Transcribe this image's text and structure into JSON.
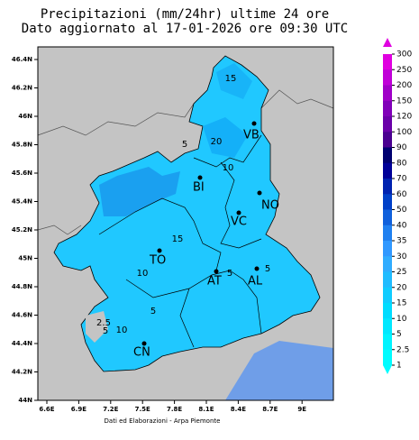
{
  "header": {
    "title": "Precipitazioni (mm/24hr) ultime 24 ore",
    "subtitle": "Dato aggiornato al 17-01-2026 ore 09:30 UTC"
  },
  "map": {
    "lon_labels": [
      "6.6E",
      "6.9E",
      "7.2E",
      "7.5E",
      "7.8E",
      "8.1E",
      "8.4E",
      "8.7E",
      "9E"
    ],
    "lat_labels": [
      "46.4N",
      "46.2N",
      "46N",
      "45.8N",
      "45.6N",
      "45.4N",
      "45.2N",
      "45N",
      "44.8N",
      "44.6N",
      "44.4N",
      "44.2N",
      "44N"
    ],
    "cities": [
      "VB",
      "BI",
      "NO",
      "VC",
      "TO",
      "AT",
      "AL",
      "CN"
    ],
    "contour_labels": [
      "15",
      "20",
      "5",
      "10",
      "15",
      "10",
      "5",
      "2.5",
      "5",
      "10",
      "5",
      "5"
    ]
  },
  "colorbar": {
    "labels": [
      "300",
      "250",
      "200",
      "150",
      "120",
      "100",
      "90",
      "80",
      "70",
      "60",
      "50",
      "40",
      "35",
      "30",
      "25",
      "20",
      "15",
      "10",
      "5",
      "2.5",
      "1"
    ],
    "colors": [
      "#e000e0",
      "#c000d8",
      "#a000c8",
      "#8000b8",
      "#6a00a8",
      "#4a0090",
      "#000070",
      "#000098",
      "#0022b0",
      "#0040c8",
      "#1060dc",
      "#2080f0",
      "#3098ff",
      "#30acff",
      "#20bcff",
      "#10ccff",
      "#00dcff",
      "#00e8ff",
      "#00f4ff",
      "#00fcff"
    ]
  },
  "footer": "Dati ed Elaborazioni - Arpa Piemonte"
}
